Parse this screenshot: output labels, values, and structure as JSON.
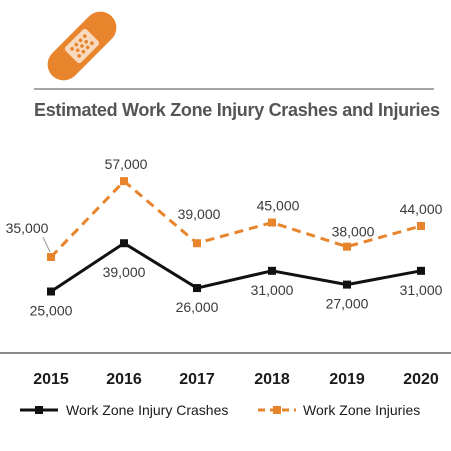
{
  "colors": {
    "crashes": "#111111",
    "injuries": "#E8842C",
    "divider": "#8a8a8a",
    "icon": "#E8842C"
  },
  "icon": "bandage-icon",
  "chart_data": {
    "type": "line",
    "title": "Estimated Work Zone Injury Crashes and Injuries",
    "xlabel": "",
    "ylabel": "",
    "x": [
      "2015",
      "2016",
      "2017",
      "2018",
      "2019",
      "2020"
    ],
    "series": [
      {
        "name": "Work Zone Injury Crashes",
        "values": [
          25000,
          39000,
          26000,
          31000,
          27000,
          31000
        ],
        "labels": [
          "25,000",
          "39,000",
          "26,000",
          "31,000",
          "27,000",
          "31,000"
        ],
        "style": "solid",
        "color": "#111111"
      },
      {
        "name": "Work Zone Injuries",
        "values": [
          35000,
          57000,
          39000,
          45000,
          38000,
          44000
        ],
        "labels": [
          "35,000",
          "57,000",
          "39,000",
          "45,000",
          "38,000",
          "44,000"
        ],
        "style": "dashed",
        "color": "#E8842C"
      }
    ],
    "ylim": [
      20000,
      60000
    ],
    "grid": false,
    "legend": "bottom"
  }
}
